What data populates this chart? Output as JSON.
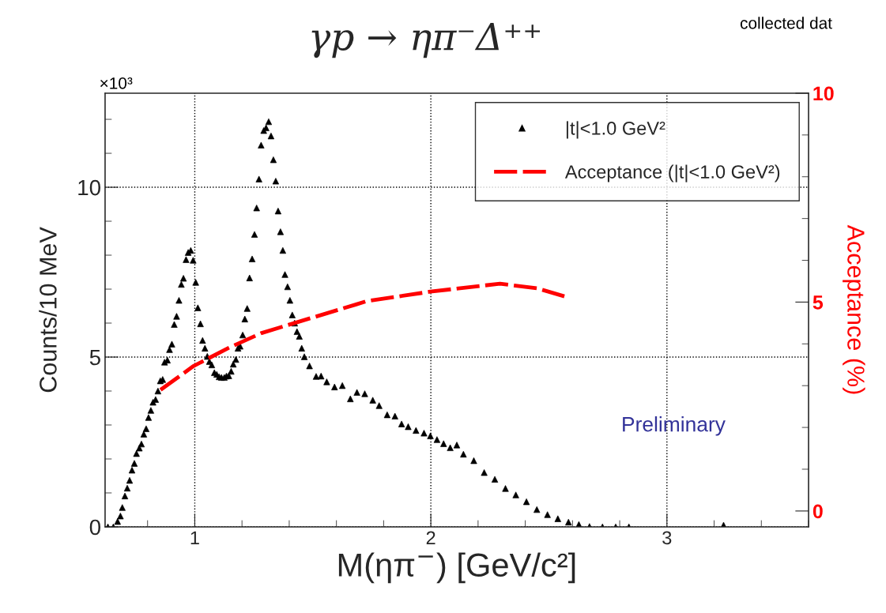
{
  "chart_data": {
    "type": "scatter",
    "title": "γp → ηπ⁻Δ⁺⁺",
    "xlabel": "M(ηπ$^{−}$) [GeV/c²]",
    "ylabel": "Counts/10 MeV",
    "y2label": "Acceptance (%)",
    "annotations": [
      "×10³",
      "collected dat",
      "Preliminary"
    ],
    "xlim": [
      0.62,
      3.6
    ],
    "xticks": [
      1,
      2,
      3
    ],
    "ylim": [
      0,
      12.77
    ],
    "yticks": [
      0,
      5,
      10
    ],
    "y2lim": [
      -0.38,
      10
    ],
    "y2ticks": [
      0,
      5,
      10
    ],
    "grid": true,
    "legend": "top right",
    "series": [
      {
        "name": "|t|<1.0 GeV²",
        "marker": "triangle",
        "color": "#000000",
        "x": [
          0.632,
          0.655,
          0.673,
          0.685,
          0.693,
          0.704,
          0.714,
          0.724,
          0.734,
          0.744,
          0.753,
          0.765,
          0.774,
          0.784,
          0.794,
          0.804,
          0.814,
          0.823,
          0.834,
          0.844,
          0.854,
          0.864,
          0.872,
          0.884,
          0.893,
          0.903,
          0.913,
          0.923,
          0.933,
          0.943,
          0.952,
          0.963,
          0.972,
          0.983,
          0.993,
          1.004,
          1.013,
          1.024,
          1.033,
          1.043,
          1.053,
          1.062,
          1.072,
          1.083,
          1.093,
          1.103,
          1.113,
          1.125,
          1.134,
          1.144,
          1.154,
          1.163,
          1.174,
          1.183,
          1.192,
          1.203,
          1.212,
          1.222,
          1.232,
          1.243,
          1.253,
          1.262,
          1.272,
          1.281,
          1.292,
          1.302,
          1.313,
          1.323,
          1.333,
          1.343,
          1.353,
          1.363,
          1.373,
          1.382,
          1.393,
          1.403,
          1.413,
          1.423,
          1.433,
          1.443,
          1.453,
          1.464,
          1.486,
          1.514,
          1.535,
          1.559,
          1.592,
          1.625,
          1.659,
          1.687,
          1.72,
          1.754,
          1.781,
          1.815,
          1.848,
          1.876,
          1.904,
          1.937,
          1.971,
          1.998,
          2.026,
          2.054,
          2.082,
          2.11,
          2.138,
          2.182,
          2.226,
          2.271,
          2.316,
          2.36,
          2.405,
          2.449,
          2.494,
          2.538,
          2.583,
          2.627,
          2.672,
          2.727,
          2.783,
          2.839,
          3.24
        ],
        "values": [
          0,
          0,
          0.16,
          0.32,
          0.57,
          0.91,
          1.14,
          1.37,
          1.67,
          1.87,
          2.16,
          2.32,
          2.44,
          2.73,
          2.89,
          3.22,
          3.43,
          3.67,
          3.75,
          4.0,
          4.3,
          4.34,
          4.85,
          4.91,
          5.22,
          5.38,
          5.96,
          6.2,
          6.67,
          7.14,
          7.32,
          7.87,
          8.08,
          8.14,
          7.85,
          7.2,
          6.45,
          5.98,
          5.49,
          5.26,
          5.02,
          4.87,
          4.77,
          4.54,
          4.49,
          4.42,
          4.4,
          4.4,
          4.44,
          4.45,
          4.58,
          4.79,
          4.93,
          5.26,
          5.32,
          5.65,
          6.12,
          6.43,
          7.33,
          7.89,
          8.61,
          9.39,
          10.24,
          11.24,
          11.67,
          11.75,
          11.93,
          11.51,
          10.81,
          10.18,
          9.3,
          8.69,
          8.14,
          7.43,
          7.07,
          6.67,
          6.24,
          6.0,
          5.75,
          5.61,
          5.26,
          5.01,
          4.74,
          4.43,
          4.44,
          4.27,
          4.12,
          4.16,
          3.77,
          3.96,
          3.92,
          3.73,
          3.57,
          3.3,
          3.26,
          3.03,
          2.95,
          2.84,
          2.76,
          2.68,
          2.57,
          2.45,
          2.33,
          2.41,
          2.14,
          1.95,
          1.6,
          1.4,
          1.13,
          0.94,
          0.74,
          0.51,
          0.36,
          0.24,
          0.14,
          0.07,
          0.01,
          0,
          0,
          0,
          0.05
        ]
      },
      {
        "name": "Acceptance (|t|<1.0 GeV²)",
        "type": "line",
        "axis": "y2",
        "line_style": "dashed",
        "marker": "none",
        "color": "#ff0000",
        "x": [
          0.855,
          0.995,
          1.142,
          1.283,
          1.423,
          1.681,
          1.726,
          1.998,
          2.293,
          2.449,
          2.583
        ],
        "values": [
          2.9,
          3.47,
          3.9,
          4.26,
          4.5,
          4.94,
          5.02,
          5.25,
          5.44,
          5.33,
          5.11
        ]
      }
    ]
  }
}
